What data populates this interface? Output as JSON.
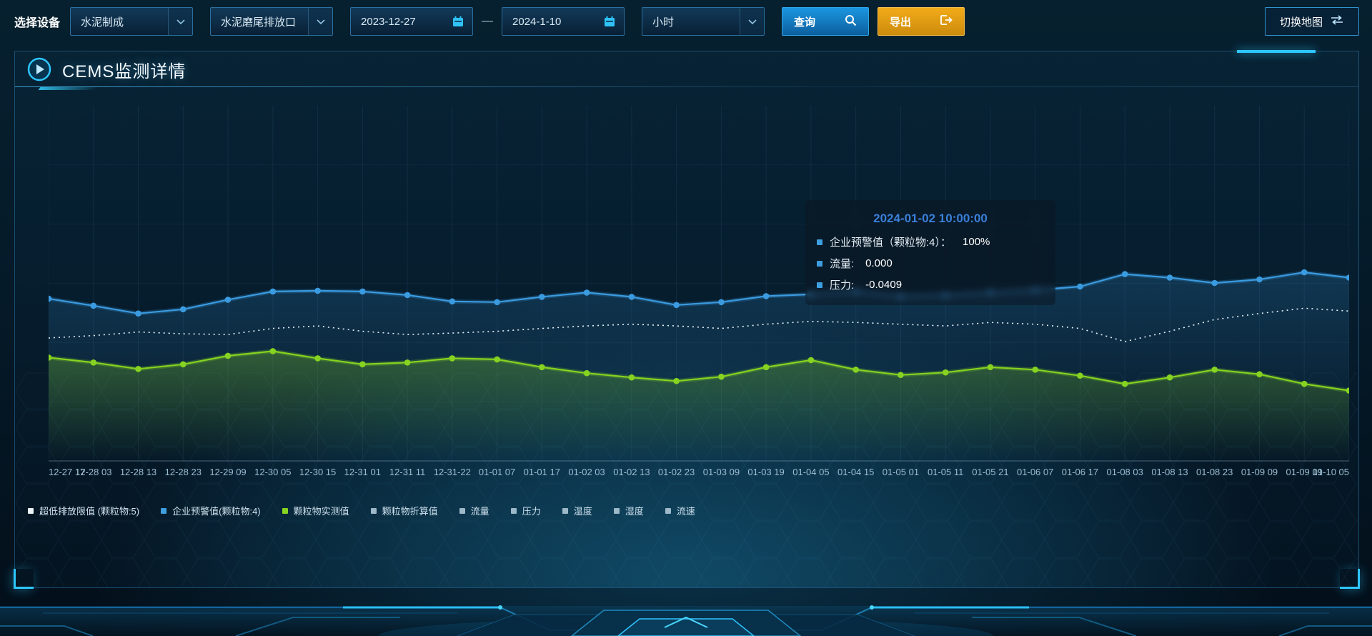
{
  "toolbar": {
    "device_label": "选择设备",
    "device_select": {
      "value": "水泥制成"
    },
    "outlet_select": {
      "value": "水泥磨尾排放口"
    },
    "date_start": "2023-12-27",
    "date_separator": "—",
    "date_end": "2024-1-10",
    "interval_select": {
      "value": "小时"
    },
    "query_button": "查询",
    "export_button": "导出",
    "switch_map_button": "切换地图"
  },
  "panel": {
    "title": "CEMS监测详情"
  },
  "tooltip": {
    "title": "2024-01-02 10:00:00",
    "items": [
      {
        "label": "企业预警值（颗粒物:4）：",
        "value": "100%",
        "marker_color": "#3d9fe0"
      },
      {
        "label": "流量:",
        "value": "0.000",
        "marker_color": "#3d9fe0"
      },
      {
        "label": "压力:",
        "value": "-0.0409",
        "marker_color": "#3d9fe0"
      }
    ]
  },
  "legend": [
    {
      "label": "超低排放限值 (颗粒物:5)",
      "color": "#e9f3f8"
    },
    {
      "label": "企业预警值(颗粒物:4)",
      "color": "#3d9fe0"
    },
    {
      "label": "颗粒物实测值",
      "color": "#86d321"
    },
    {
      "label": "颗粒物折算值",
      "color": "#9db8c8"
    },
    {
      "label": "流量",
      "color": "#9db8c8"
    },
    {
      "label": "压力",
      "color": "#9db8c8"
    },
    {
      "label": "温度",
      "color": "#9db8c8"
    },
    {
      "label": "湿度",
      "color": "#9db8c8"
    },
    {
      "label": "流速",
      "color": "#9db8c8"
    }
  ],
  "chart_data": {
    "type": "line",
    "title": "CEMS监测详情",
    "x": [
      "12-27 17",
      "12-28 03",
      "12-28 13",
      "12-28 23",
      "12-29 09",
      "12-30 05",
      "12-30 15",
      "12-31 01",
      "12-31 11",
      "12-31-22",
      "01-01 07",
      "01-01 17",
      "01-02 03",
      "01-02 13",
      "01-02 23",
      "01-03 09",
      "01-03 19",
      "01-04 05",
      "01-04 15",
      "01-05 01",
      "01-05 11",
      "01-05 21",
      "01-06 07",
      "01-06 17",
      "01-08 03",
      "01-08 13",
      "01-08 23",
      "01-09 09",
      "01-09 19",
      "01-10 05"
    ],
    "ylim": [
      0,
      100
    ],
    "grid": true,
    "legend_position": "bottom",
    "series": [
      {
        "name": "企业预警值(颗粒物:4)",
        "color": "#3b9be0",
        "style": "solid",
        "points": true,
        "area": true,
        "area_opacity": 0.2,
        "values": [
          45.7,
          43.7,
          41.5,
          42.7,
          45.4,
          47.7,
          47.9,
          47.7,
          46.7,
          44.9,
          44.7,
          46.2,
          47.4,
          46.2,
          43.9,
          44.7,
          46.4,
          46.9,
          47.7,
          46.4,
          46.7,
          47.4,
          48.1,
          49.1,
          52.6,
          51.6,
          50.1,
          51.1,
          53.1,
          51.6
        ]
      },
      {
        "name": "超低排放限值 (颗粒物:5)",
        "color": "#e9f3f8",
        "style": "dotted",
        "points": false,
        "area": false,
        "values": [
          34.6,
          35.3,
          36.3,
          35.8,
          35.6,
          37.3,
          38.0,
          36.5,
          35.6,
          36.0,
          36.5,
          37.3,
          38.0,
          38.5,
          38.0,
          37.3,
          38.5,
          39.3,
          39.0,
          38.5,
          38.0,
          39.0,
          38.5,
          37.3,
          33.6,
          36.5,
          39.8,
          41.5,
          43.0,
          42.2
        ]
      },
      {
        "name": "颗粒物实测值",
        "color": "#86d321",
        "style": "solid",
        "points": true,
        "area": true,
        "area_opacity": 0.3,
        "values": [
          29.1,
          27.7,
          25.9,
          27.2,
          29.6,
          30.9,
          28.9,
          27.2,
          27.7,
          28.9,
          28.6,
          26.4,
          24.7,
          23.5,
          22.5,
          23.7,
          26.4,
          28.4,
          25.7,
          24.2,
          24.9,
          26.4,
          25.7,
          24.0,
          21.7,
          23.5,
          25.7,
          24.4,
          21.7,
          19.8
        ]
      }
    ]
  }
}
